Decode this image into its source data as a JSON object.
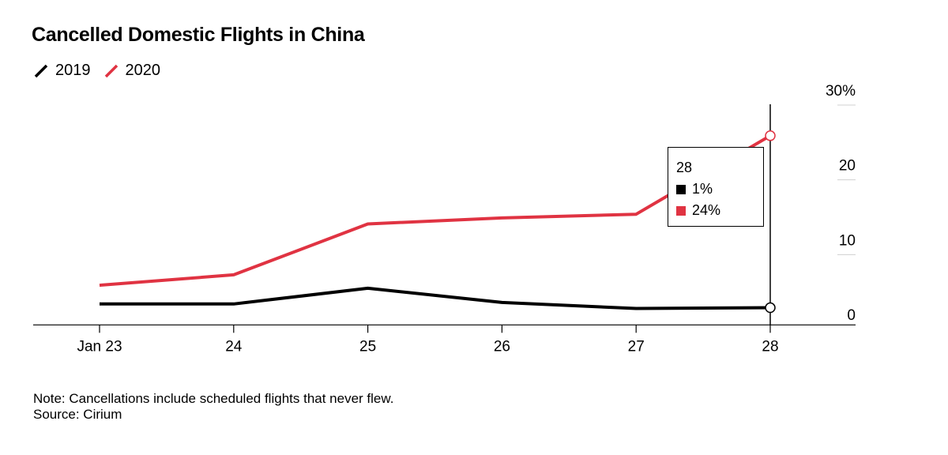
{
  "title": "Cancelled Domestic Flights in China",
  "legend": [
    {
      "label": "2019",
      "color": "#000000"
    },
    {
      "label": "2020",
      "color": "#e03342"
    }
  ],
  "notes": {
    "note": "Note: Cancellations include scheduled flights that never flew.",
    "source": "Source: Cirium"
  },
  "tooltip": {
    "date": "28",
    "rows": [
      {
        "label": "1%",
        "color": "#000000"
      },
      {
        "label": "24%",
        "color": "#e03342"
      }
    ]
  },
  "chart_data": {
    "type": "line",
    "title": "Cancelled Domestic Flights in China",
    "categories": [
      "Jan 23",
      "24",
      "25",
      "26",
      "27",
      "28"
    ],
    "series": [
      {
        "name": "2019",
        "color": "#000000",
        "values": [
          1.5,
          1.5,
          3.6,
          1.7,
          0.9,
          1.0
        ]
      },
      {
        "name": "2020",
        "color": "#e03342",
        "values": [
          4.0,
          5.4,
          12.2,
          13.0,
          13.5,
          24.0
        ]
      }
    ],
    "y_ticks": [
      0,
      10,
      20,
      30
    ],
    "y_tick_labels": [
      "0",
      "10",
      "20",
      "30%"
    ],
    "ylim": [
      -1.3,
      30
    ],
    "xlabel": "",
    "ylabel": "",
    "highlight_category": "28"
  }
}
